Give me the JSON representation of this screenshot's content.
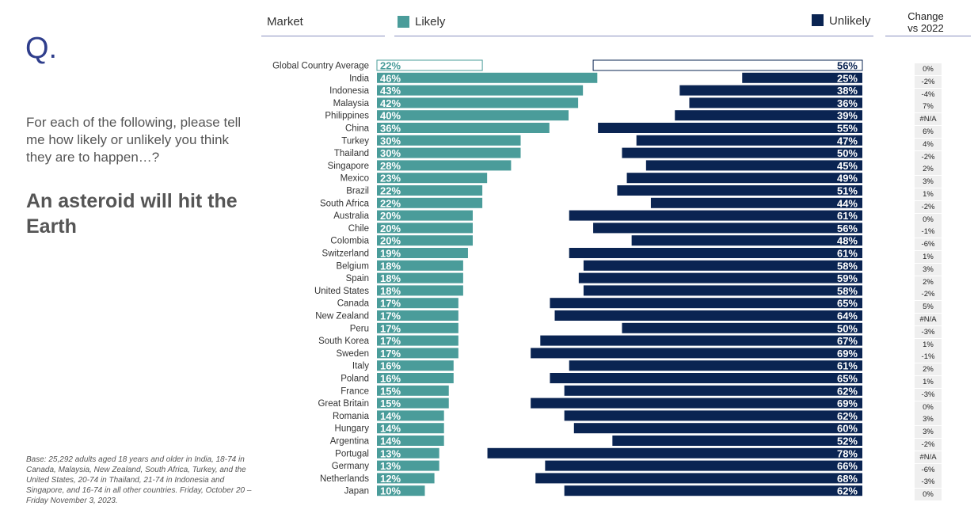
{
  "q_label": "Q.",
  "question": "For each of the following, please tell me how likely or unlikely you think they are to happen…?",
  "statement": "An asteroid will hit the Earth",
  "base_note": "Base: 25,292 adults aged 18 years and older in India, 18-74 in Canada, Malaysia, New Zealand, South Africa, Turkey, and the United States, 20-74 in Thailand, 21-74 in Indonesia and Singapore, and 16-74 in all other countries. Friday, October 20 – Friday November 3, 2023.",
  "header": {
    "market": "Market",
    "likely": "Likely",
    "unlikely": "Unlikely",
    "change": "Change vs 2022"
  },
  "colors": {
    "likely": "#4a9c9a",
    "unlikely": "#0a2452",
    "average_outline_likely": "#4a9c9a",
    "average_outline_unlikely": "#0a2452",
    "accent": "#2f3e8c"
  },
  "chart_data": {
    "type": "bar",
    "orientation": "horizontal",
    "value_format": "percent",
    "series": [
      {
        "name": "Likely",
        "values": [
          22,
          46,
          43,
          42,
          40,
          36,
          30,
          30,
          28,
          23,
          22,
          22,
          20,
          20,
          20,
          19,
          18,
          18,
          18,
          17,
          17,
          17,
          17,
          17,
          16,
          16,
          15,
          15,
          14,
          14,
          14,
          13,
          13,
          12,
          10
        ]
      },
      {
        "name": "Unlikely",
        "values": [
          56,
          25,
          38,
          36,
          39,
          55,
          47,
          50,
          45,
          49,
          51,
          44,
          61,
          56,
          48,
          61,
          58,
          59,
          58,
          65,
          64,
          50,
          67,
          69,
          61,
          65,
          62,
          69,
          62,
          60,
          52,
          78,
          66,
          68,
          62
        ]
      }
    ],
    "categories": [
      "Global Country Average",
      "India",
      "Indonesia",
      "Malaysia",
      "Philippines",
      "China",
      "Turkey",
      "Thailand",
      "Singapore",
      "Mexico",
      "Brazil",
      "South Africa",
      "Australia",
      "Chile",
      "Colombia",
      "Switzerland",
      "Belgium",
      "Spain",
      "United States",
      "Canada",
      "New Zealand",
      "Peru",
      "South Korea",
      "Sweden",
      "Italy",
      "Poland",
      "France",
      "Great Britain",
      "Romania",
      "Hungary",
      "Argentina",
      "Portugal",
      "Germany",
      "Netherlands",
      "Japan"
    ],
    "change_vs_2022": [
      "0%",
      "-2%",
      "-4%",
      "7%",
      "#N/A",
      "6%",
      "4%",
      "-2%",
      "2%",
      "3%",
      "1%",
      "-2%",
      "0%",
      "-1%",
      "-6%",
      "1%",
      "3%",
      "2%",
      "-2%",
      "5%",
      "#N/A",
      "-3%",
      "1%",
      "-1%",
      "2%",
      "1%",
      "-3%",
      "0%",
      "3%",
      "3%",
      "-2%",
      "#N/A",
      "-6%",
      "-3%",
      "0%"
    ]
  }
}
